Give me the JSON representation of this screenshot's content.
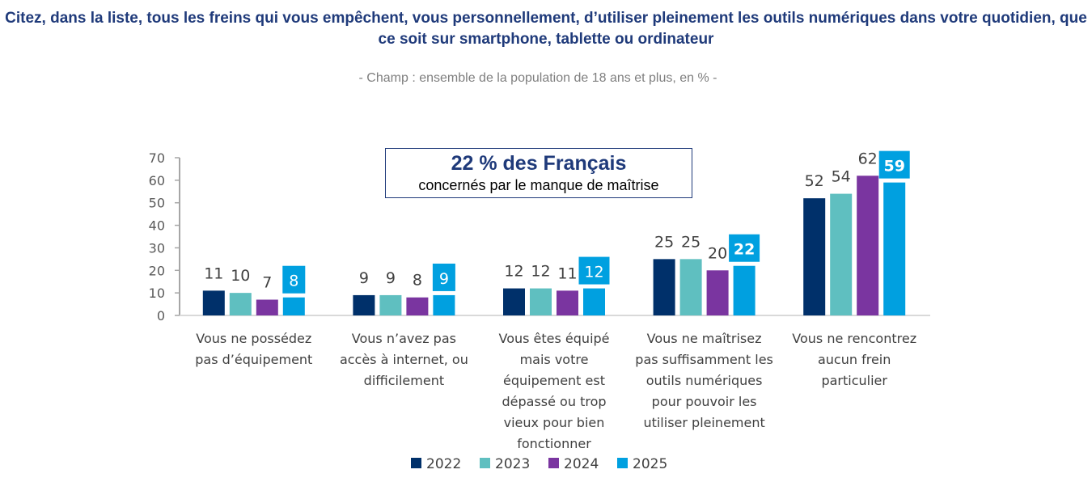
{
  "chart_data": {
    "type": "bar",
    "title": "Citez, dans la liste, tous les freins qui vous empêchent, vous personnellement, d’utiliser pleinement les outils numériques dans votre quotidien, que ce soit sur smartphone, tablette ou ordinateur",
    "subtitle": "- Champ : ensemble de la population de 18 ans et plus, en % -",
    "callout": {
      "headline": "22 % des Français",
      "text": "concernés par le manque de maîtrise"
    },
    "categories": [
      [
        "Vous ne possédez",
        "pas d’équipement"
      ],
      [
        "Vous n’avez pas",
        "accès à internet, ou",
        "difficilement"
      ],
      [
        "Vous êtes équipé",
        "mais votre",
        "équipement est",
        "dépassé ou trop",
        "vieux pour bien",
        "fonctionner"
      ],
      [
        "Vous ne maîtrisez",
        "pas suffisamment les",
        "outils numériques",
        "pour pouvoir les",
        "utiliser pleinement"
      ],
      [
        "Vous ne rencontrez",
        "aucun frein",
        "particulier"
      ]
    ],
    "series": [
      {
        "name": "2022",
        "color": "#00306a",
        "values": [
          11,
          9,
          12,
          25,
          52
        ]
      },
      {
        "name": "2023",
        "color": "#5fbfc0",
        "values": [
          10,
          9,
          12,
          25,
          54
        ]
      },
      {
        "name": "2024",
        "color": "#7a35a0",
        "values": [
          7,
          8,
          11,
          20,
          62
        ]
      },
      {
        "name": "2025",
        "color": "#00a0e0",
        "values": [
          8,
          9,
          12,
          22,
          59
        ],
        "highlighted": true
      }
    ],
    "ylim": [
      0,
      70
    ],
    "yticks": [
      0,
      10,
      20,
      30,
      40,
      50,
      60,
      70
    ],
    "grid": false,
    "legend": "bottom"
  }
}
